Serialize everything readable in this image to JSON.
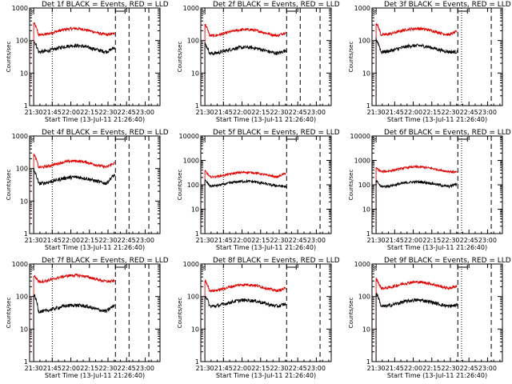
{
  "chart_data": {
    "type": "line",
    "layout": "3x3 grid",
    "axes_common": {
      "xlabel": "Start Time (13-Jul-11 21:26:40)",
      "ylabel": "Counts/sec",
      "x_ticks": [
        "21:30",
        "21:45",
        "22:00",
        "22:15",
        "22:30",
        "22:45",
        "23:00"
      ],
      "x_tick_minutes": [
        0,
        15,
        30,
        45,
        60,
        75,
        90
      ],
      "xlim_minutes": [
        -3.3,
        102
      ],
      "y_scale": "log",
      "ylim": [
        1,
        1000
      ],
      "y_ticks": [
        "1",
        "10",
        "100",
        "1000"
      ],
      "grid": false,
      "series_colors": {
        "events": "#000000",
        "lld": "#e00000"
      }
    },
    "panels": [
      {
        "title": "Det 1f BLACK = Events, RED = LLD",
        "ylim": [
          1,
          1000
        ],
        "y_ticks": [
          "1",
          "10",
          "100",
          "1000"
        ],
        "events": {
          "start": 100,
          "dip": 45,
          "end": 60
        },
        "lld": {
          "start": 350,
          "dip": 150,
          "end": 165
        },
        "dotted_minute": 15,
        "dashed_minutes": [
          66,
          77,
          93
        ],
        "bracket_minute": 66
      },
      {
        "title": "Det 2f BLACK = Events, RED = LLD",
        "ylim": [
          1,
          1000
        ],
        "y_ticks": [
          "1",
          "10",
          "100",
          "1000"
        ],
        "events": {
          "start": 80,
          "dip": 40,
          "end": 50
        },
        "lld": {
          "start": 320,
          "dip": 140,
          "end": 180
        },
        "dotted_minute": 15,
        "dashed_minutes": [
          66,
          77,
          93
        ],
        "bracket_minute": 66
      },
      {
        "title": "Det 3f BLACK = Events, RED = LLD",
        "ylim": [
          1,
          1000
        ],
        "y_ticks": [
          "1",
          "10",
          "100",
          "1000"
        ],
        "events": {
          "start": 110,
          "dip": 45,
          "end": 45
        },
        "lld": {
          "start": 350,
          "dip": 150,
          "end": 190
        },
        "dotted_minute": 69,
        "dashed_minutes": [
          66,
          93
        ],
        "bracket_minute": 66
      },
      {
        "title": "Det 4f BLACK = Events, RED = LLD",
        "ylim": [
          1,
          1000
        ],
        "y_ticks": [
          "1",
          "10",
          "100",
          "1000"
        ],
        "events": {
          "start": 90,
          "dip": 35,
          "end": 65
        },
        "lld": {
          "start": 280,
          "dip": 110,
          "end": 150
        },
        "dotted_minute": 15,
        "dashed_minutes": [
          66,
          77,
          93
        ],
        "bracket_minute": 66
      },
      {
        "title": "Det 5f BLACK = Events, RED = LLD",
        "ylim": [
          1,
          10000
        ],
        "y_ticks": [
          "1",
          "10",
          "100",
          "1000",
          "10000"
        ],
        "events": {
          "start": 150,
          "dip": 90,
          "end": 85
        },
        "lld": {
          "start": 370,
          "dip": 210,
          "end": 300
        },
        "dotted_minute": 15,
        "dashed_minutes": [
          66,
          93
        ],
        "bracket_minute": 66
      },
      {
        "title": "Det 6f BLACK = Events, RED = LLD",
        "ylim": [
          1,
          10000
        ],
        "y_ticks": [
          "1",
          "10",
          "100",
          "1000",
          "10000"
        ],
        "events": {
          "start": 140,
          "dip": 85,
          "end": 110
        },
        "lld": {
          "start": 480,
          "dip": 350,
          "end": 330
        },
        "dotted_minute": 69,
        "dashed_minutes": [
          66,
          93
        ],
        "bracket_minute": 66
      },
      {
        "title": "Det 7f BLACK = Events, RED = LLD",
        "ylim": [
          1,
          1000
        ],
        "y_ticks": [
          "1",
          "10",
          "100",
          "1000"
        ],
        "events": {
          "start": 120,
          "dip": 35,
          "end": 55
        },
        "lld": {
          "start": 450,
          "dip": 290,
          "end": 300
        },
        "dotted_minute": 15,
        "dashed_minutes": [
          66,
          77,
          93
        ],
        "bracket_minute": 66
      },
      {
        "title": "Det 8f BLACK = Events, RED = LLD",
        "ylim": [
          1,
          1000
        ],
        "y_ticks": [
          "1",
          "10",
          "100",
          "1000"
        ],
        "events": {
          "start": 110,
          "dip": 50,
          "end": 60
        },
        "lld": {
          "start": 310,
          "dip": 150,
          "end": 180
        },
        "dotted_minute": 15,
        "dashed_minutes": [
          66,
          93
        ],
        "bracket_minute": 66
      },
      {
        "title": "Det 9f BLACK = Events, RED = LLD",
        "ylim": [
          1,
          1000
        ],
        "y_ticks": [
          "1",
          "10",
          "100",
          "1000"
        ],
        "events": {
          "start": 130,
          "dip": 50,
          "end": 55
        },
        "lld": {
          "start": 350,
          "dip": 180,
          "end": 210
        },
        "dotted_minute": 69,
        "dashed_minutes": [
          66,
          93
        ],
        "bracket_minute": 66
      }
    ]
  }
}
